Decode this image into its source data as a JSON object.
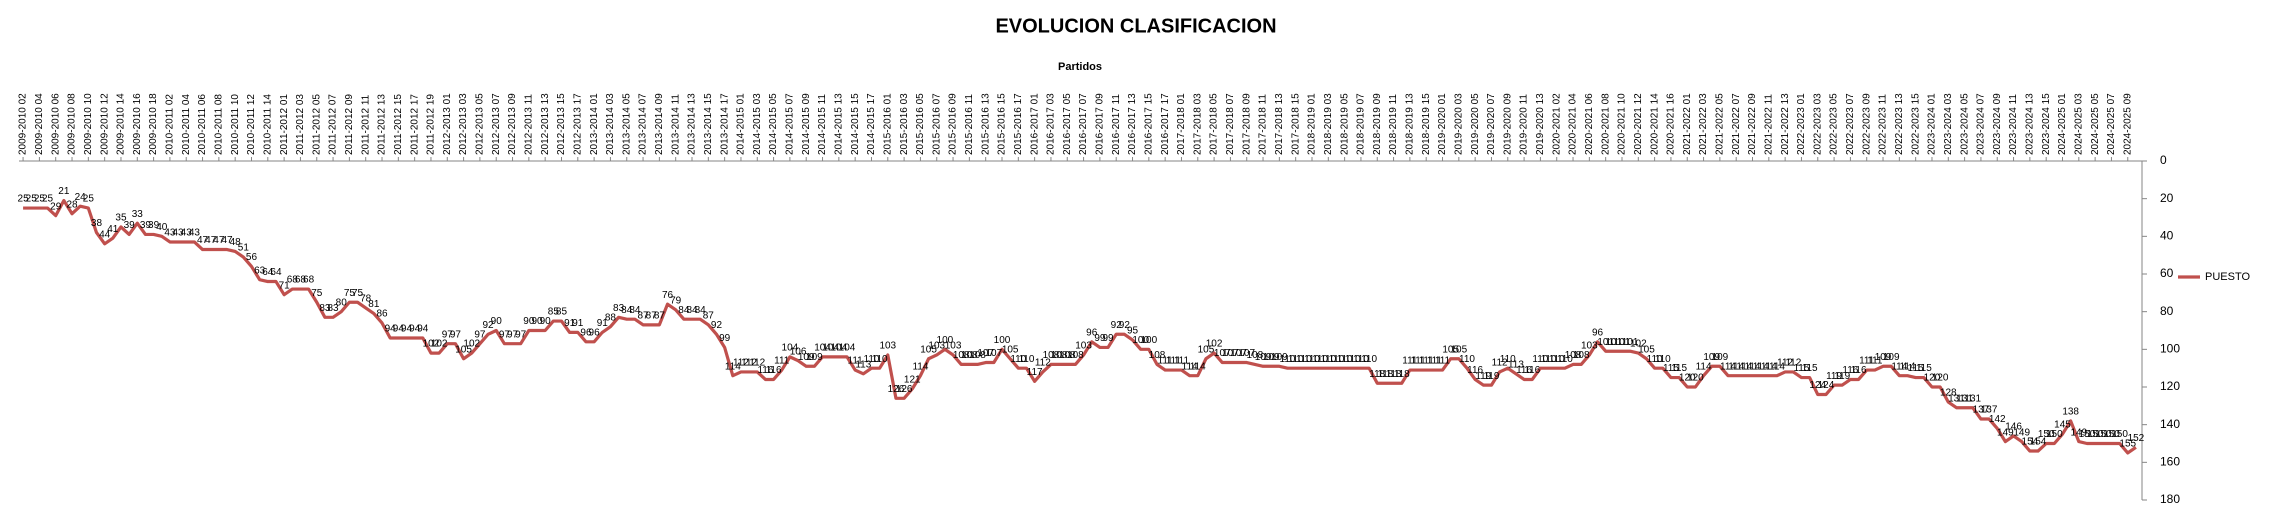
{
  "chart_data": {
    "type": "line",
    "title": "EVOLUCION CLASIFICACION",
    "x_label": "Partidos",
    "categories": [
      "2009-2010 02",
      null,
      "2009-2010 04",
      null,
      "2009-2010 06",
      null,
      "2009-2010 08",
      null,
      "2009-2010 10",
      null,
      "2009-2010 12",
      null,
      "2009-2010 14",
      null,
      "2009-2010 16",
      null,
      "2009-2010 18",
      null,
      "2010-2011 02",
      null,
      "2010-2011 04",
      null,
      "2010-2011 06",
      null,
      "2010-2011 08",
      null,
      "2010-2011 10",
      null,
      "2010-2011 12",
      null,
      "2010-2011 14",
      null,
      "2011-2012 01",
      null,
      "2011-2012 03",
      null,
      "2011-2012 05",
      null,
      "2011-2012 07",
      null,
      "2011-2012 09",
      null,
      "2011-2012 11",
      null,
      "2011-2012 13",
      null,
      "2011-2012 15",
      null,
      "2011-2012 17",
      null,
      "2011-2012 19",
      null,
      "2012-2013 01",
      null,
      "2012-2013 03",
      null,
      "2012-2013 05",
      null,
      "2012-2013 07",
      null,
      "2012-2013 09",
      null,
      "2012-2013 11",
      null,
      "2012-2013 13",
      null,
      "2012-2013 15",
      null,
      "2012-2013 17",
      null,
      "2013-2014 01",
      null,
      "2013-2014 03",
      null,
      "2013-2014 05",
      null,
      "2013-2014 07",
      null,
      "2013-2014 09",
      null,
      "2013-2014 11",
      null,
      "2013-2014 13",
      null,
      "2013-2014 15",
      null,
      "2013-2014 17",
      null,
      "2014-2015 01",
      null,
      "2014-2015 03",
      null,
      "2014-2015 05",
      null,
      "2014-2015 07",
      null,
      "2014-2015 09",
      null,
      "2014-2015 11",
      null,
      "2014-2015 13",
      null,
      "2014-2015 15",
      null,
      "2014-2015 17",
      null,
      "2015-2016 01",
      null,
      "2015-2016 03",
      null,
      "2015-2016 05",
      null,
      "2015-2016 07",
      null,
      "2015-2016 09",
      null,
      "2015-2016 11",
      null,
      "2015-2016 13",
      null,
      "2015-2016 15",
      null,
      "2015-2016 17",
      null,
      "2016-2017 01",
      null,
      "2016-2017 03",
      null,
      "2016-2017 05",
      null,
      "2016-2017 07",
      null,
      "2016-2017 09",
      null,
      "2016-2017 11",
      null,
      "2016-2017 13",
      null,
      "2016-2017 15",
      null,
      "2016-2017 17",
      null,
      "2017-2018 01",
      null,
      "2017-2018 03",
      null,
      "2017-2018 05",
      null,
      "2017-2018 07",
      null,
      "2017-2018 09",
      null,
      "2017-2018 11",
      null,
      "2017-2018 13",
      null,
      "2017-2018 15",
      null,
      "2018-2019 01",
      null,
      "2018-2019 03",
      null,
      "2018-2019 05",
      null,
      "2018-2019 07",
      null,
      "2018-2019 09",
      null,
      "2018-2019 11",
      null,
      "2018-2019 13",
      null,
      "2018-2019 15",
      null,
      "2019-2020 01",
      null,
      "2019-2020 03",
      null,
      "2019-2020 05",
      null,
      "2019-2020 07",
      null,
      "2019-2020 09",
      null,
      "2019-2020 11",
      null,
      "2019-2020 13",
      null,
      "2020-2021 02",
      null,
      "2020-2021 04",
      null,
      "2020-2021 06",
      null,
      "2020-2021 08",
      null,
      "2020-2021 10",
      null,
      "2020-2021 12",
      null,
      "2020-2021 14",
      null,
      "2020-2021 16",
      null,
      "2021-2022 01",
      null,
      "2021-2022 03",
      null,
      "2021-2022 05",
      null,
      "2021-2022 07",
      null,
      "2021-2022 09",
      null,
      "2021-2022 11",
      null,
      "2021-2022 13",
      null,
      "2022-2023 01",
      null,
      "2022-2023 03",
      null,
      "2022-2023 05",
      null,
      "2022-2023 07",
      null,
      "2022-2023 09",
      null,
      "2022-2023 11",
      null,
      "2022-2023 13",
      null,
      "2022-2023 15",
      null,
      "2023-2024 01",
      null,
      "2023-2024 03",
      null,
      "2023-2024 05",
      null,
      "2023-2024 07",
      null,
      "2023-2024 09",
      null,
      "2023-2024 11",
      null,
      "2023-2024 13",
      null,
      "2023-2024 15",
      null,
      "2024-2025 01",
      null,
      "2024-2025 03",
      null,
      "2024-2025 05",
      null,
      "2024-2025 07",
      null,
      "2024-2025 09",
      null
    ],
    "series": [
      {
        "name": "PUESTO",
        "color": "#c0504d",
        "values": [
          25,
          25,
          25,
          25,
          29,
          21,
          28,
          24,
          25,
          38,
          44,
          41,
          35,
          39,
          33,
          39,
          39,
          40,
          43,
          43,
          43,
          43,
          47,
          47,
          47,
          47,
          48,
          51,
          56,
          63,
          64,
          64,
          71,
          68,
          68,
          68,
          75,
          83,
          83,
          80,
          75,
          75,
          78,
          81,
          86,
          94,
          94,
          94,
          94,
          94,
          102,
          102,
          97,
          97,
          105,
          102,
          97,
          92,
          90,
          97,
          97,
          97,
          90,
          90,
          90,
          85,
          85,
          91,
          91,
          96,
          96,
          91,
          88,
          83,
          84,
          84,
          87,
          87,
          87,
          76,
          79,
          84,
          84,
          84,
          87,
          92,
          99,
          114,
          112,
          112,
          112,
          116,
          116,
          111,
          104,
          106,
          109,
          109,
          104,
          104,
          104,
          104,
          111,
          113,
          110,
          110,
          103,
          126,
          126,
          121,
          114,
          105,
          103,
          100,
          103,
          108,
          108,
          108,
          107,
          107,
          100,
          105,
          110,
          110,
          117,
          112,
          108,
          108,
          108,
          108,
          103,
          96,
          99,
          99,
          92,
          92,
          95,
          100,
          100,
          108,
          111,
          111,
          111,
          114,
          114,
          105,
          102,
          107,
          107,
          107,
          107,
          108,
          109,
          109,
          109,
          110,
          110,
          110,
          110,
          110,
          110,
          110,
          110,
          110,
          110,
          110,
          118,
          118,
          118,
          118,
          111,
          111,
          111,
          111,
          111,
          105,
          105,
          110,
          116,
          119,
          119,
          112,
          110,
          113,
          116,
          116,
          110,
          110,
          110,
          110,
          108,
          108,
          103,
          96,
          101,
          101,
          101,
          101,
          102,
          105,
          110,
          110,
          115,
          115,
          120,
          120,
          114,
          109,
          109,
          114,
          114,
          114,
          114,
          114,
          114,
          114,
          112,
          112,
          115,
          115,
          124,
          124,
          119,
          119,
          116,
          116,
          111,
          111,
          109,
          109,
          114,
          114,
          115,
          115,
          120,
          120,
          128,
          131,
          131,
          131,
          137,
          137,
          142,
          149,
          146,
          149,
          154,
          154,
          150,
          150,
          145,
          138,
          149,
          150,
          150,
          150,
          150,
          150,
          155,
          152
        ]
      }
    ],
    "ylim": [
      0,
      180
    ],
    "yticks": [
      0,
      20,
      40,
      60,
      80,
      100,
      120,
      140,
      160,
      180
    ],
    "y_reversed": true,
    "y_axis_side": "right",
    "legend": "right",
    "data_labels": true
  }
}
